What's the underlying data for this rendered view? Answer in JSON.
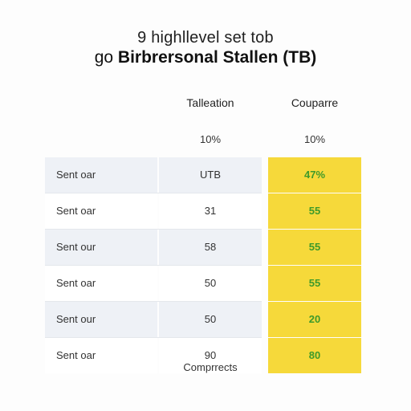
{
  "header": {
    "line1": "9 highllevel set tob",
    "line2_prefix": "go ",
    "line2_main": "Birbrersonal Stallen (TB)"
  },
  "columns": {
    "col1_header": "Talleation",
    "col2_header": "Couparre",
    "col1_pct": "10%",
    "col2_pct": "10%"
  },
  "rows": [
    {
      "label": "Sent oar",
      "value": "UTB",
      "highlight": "47%"
    },
    {
      "label": "Sent oar",
      "value": "31",
      "highlight": "55"
    },
    {
      "label": "Sent our",
      "value": "58",
      "highlight": "55"
    },
    {
      "label": "Sent oar",
      "value": "50",
      "highlight": "55"
    },
    {
      "label": "Sent our",
      "value": "50",
      "highlight": "20"
    },
    {
      "label": "Sent oar",
      "value": "90",
      "highlight": "80"
    }
  ],
  "footer": {
    "label": "Comprrects"
  },
  "colors": {
    "highlight_bg": "#f6d93a",
    "highlight_text": "#3f9a2a",
    "row_shade": "#eef1f6"
  }
}
